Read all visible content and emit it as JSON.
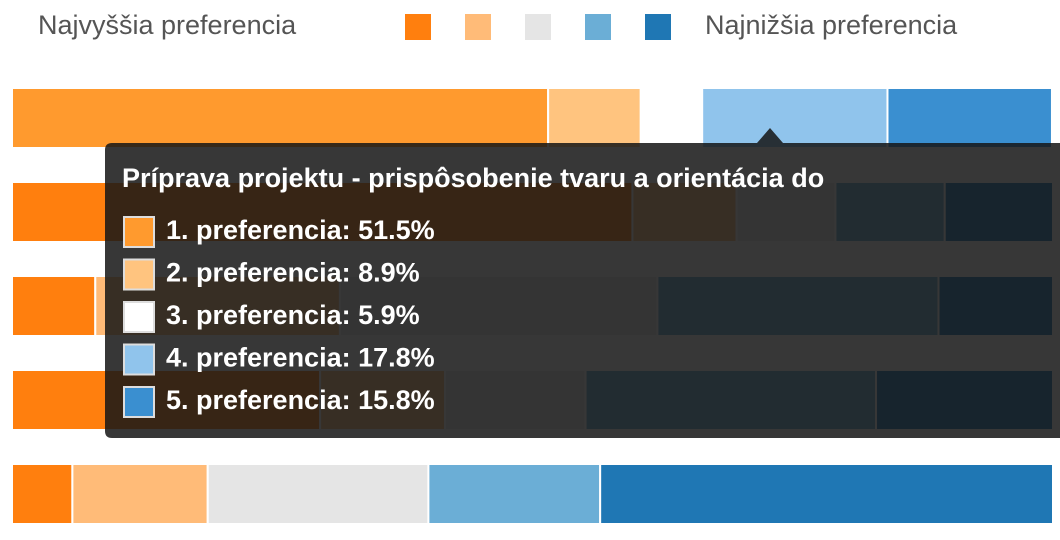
{
  "chart_data": {
    "type": "stacked_bar_horizontal",
    "legend": {
      "left": "Najvyššia preferencia",
      "right": "Najnižšia preferencia"
    },
    "categories": [
      null,
      null,
      null,
      null,
      null
    ],
    "xlim": [
      0,
      100
    ],
    "series": [
      {
        "color": "#ff7f0e",
        "values": [
          51.5,
          59.6,
          8,
          29.6,
          5.8
        ]
      },
      {
        "color": "#ffbb78",
        "values": [
          8.9,
          10,
          23.5,
          12,
          13
        ]
      },
      {
        "color": "#e5e5e5",
        "values": [
          5.9,
          9.5,
          30.5,
          13.5,
          21.2
        ]
      },
      {
        "color": "#6baed6",
        "values": [
          17.8,
          10.5,
          27,
          27.9,
          16.5
        ]
      },
      {
        "color": "#1f77b4",
        "values": [
          15.8,
          10.4,
          11,
          17,
          43.5
        ]
      }
    ],
    "hover_index": 0,
    "tooltip": {
      "title": "Príprava projektu - prispôsobenie tvaru a orientácia do",
      "colors": [
        "#ff9a2e",
        "#ffc47f",
        "#ffffff",
        "#90c4ec",
        "#3a8fd0"
      ],
      "value_labels": [
        "1. preferencia: 51.5%",
        "2. preferencia: 8.9%",
        "3. preferencia: 5.9%",
        "4. preferencia: 17.8%",
        "5. preferencia: 15.8%"
      ]
    }
  }
}
